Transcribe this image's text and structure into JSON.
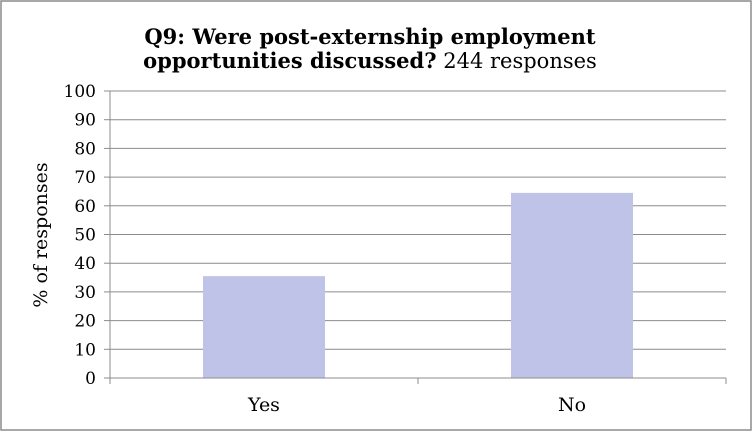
{
  "chart_data": {
    "type": "bar",
    "title_bold_line1": "Q9: Were post-externship employment",
    "title_bold_line2": "opportunities discussed?",
    "title_suffix": "244 responses",
    "ylabel": "% of responses",
    "xlabel": "",
    "categories": [
      "Yes",
      "No"
    ],
    "values": [
      35.5,
      64.5
    ],
    "ylim": [
      0,
      100
    ],
    "yticks": [
      "0",
      "10",
      "20",
      "30",
      "40",
      "50",
      "60",
      "70",
      "80",
      "90",
      "100"
    ],
    "bar_color": "#c0c3e8",
    "grid": true,
    "legend": "none"
  }
}
